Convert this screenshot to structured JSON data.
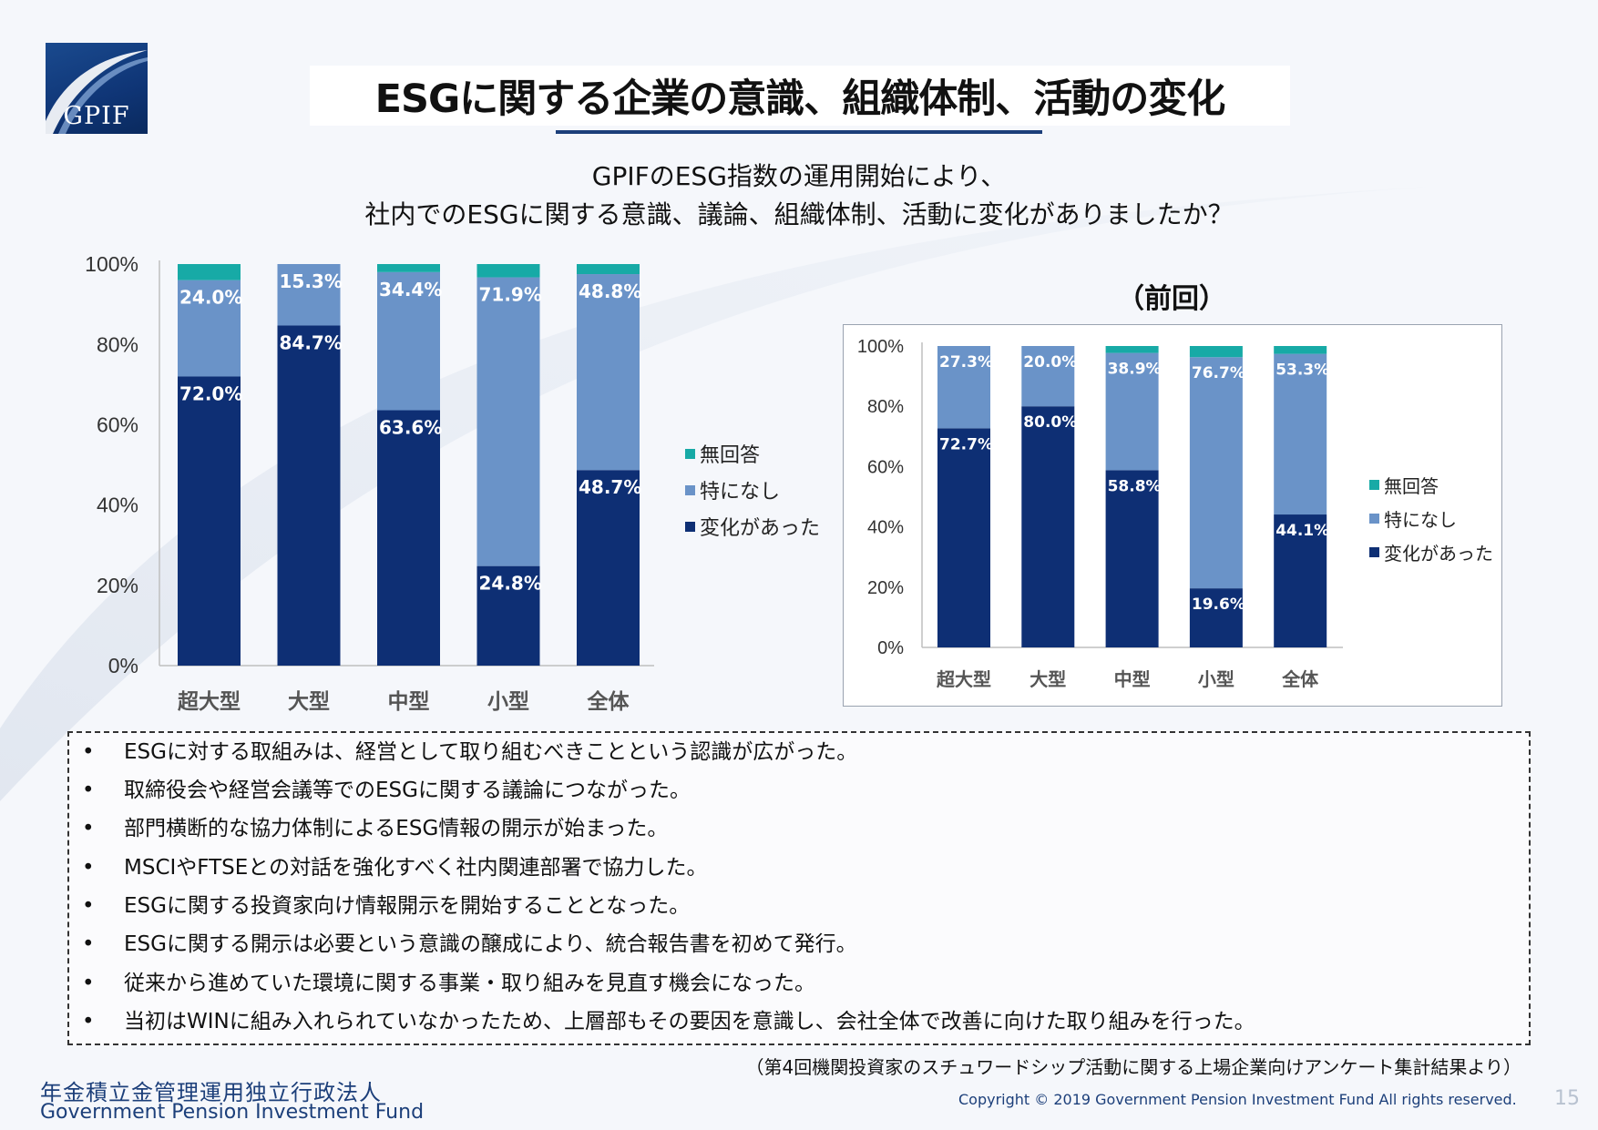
{
  "logo": {
    "text": "GPIF"
  },
  "title": "ESGに関する企業の意識、組織体制、活動の変化",
  "question": {
    "line1": "GPIFのESG指数の運用開始により、",
    "line2": "社内でのESGに関する意識、議論、組織体制、活動に変化がありましたか？"
  },
  "colors": {
    "changed": "#0e2f74",
    "none": "#6a93c8",
    "no_answer": "#17aaa6",
    "accent": "#1c3f7a"
  },
  "legend": [
    "無回答",
    "特になし",
    "変化があった"
  ],
  "chart_data": [
    {
      "id": "current",
      "type": "bar",
      "stacked": true,
      "title": "",
      "categories": [
        "超大型",
        "大型",
        "中型",
        "小型",
        "全体"
      ],
      "series": [
        {
          "name": "変化があった",
          "color": "#0e2f74",
          "values": [
            72.0,
            84.7,
            63.6,
            24.8,
            48.7
          ],
          "labels": [
            "72.0%",
            "84.7%",
            "63.6%",
            "24.8%",
            "48.7%"
          ]
        },
        {
          "name": "特になし",
          "color": "#6a93c8",
          "values": [
            24.0,
            15.3,
            34.4,
            71.9,
            48.8
          ],
          "labels": [
            "24.0%",
            "15.3%",
            "34.4%",
            "71.9%",
            "48.8%"
          ]
        },
        {
          "name": "無回答",
          "color": "#17aaa6",
          "values": [
            4.0,
            0.0,
            2.0,
            3.3,
            2.5
          ],
          "labels": [
            "",
            "",
            "",
            "",
            ""
          ]
        }
      ],
      "yticks": [
        "0%",
        "20%",
        "40%",
        "60%",
        "80%",
        "100%"
      ],
      "ylim": [
        0,
        100
      ],
      "legend_position": "right"
    },
    {
      "id": "previous",
      "type": "bar",
      "stacked": true,
      "title": "（前回）",
      "categories": [
        "超大型",
        "大型",
        "中型",
        "小型",
        "全体"
      ],
      "series": [
        {
          "name": "変化があった",
          "color": "#0e2f74",
          "values": [
            72.7,
            80.0,
            58.8,
            19.6,
            44.1
          ],
          "labels": [
            "72.7%",
            "80.0%",
            "58.8%",
            "19.6%",
            "44.1%"
          ]
        },
        {
          "name": "特になし",
          "color": "#6a93c8",
          "values": [
            27.3,
            20.0,
            38.9,
            76.7,
            53.3
          ],
          "labels": [
            "27.3%",
            "20.0%",
            "38.9%",
            "76.7%",
            "53.3%"
          ]
        },
        {
          "name": "無回答",
          "color": "#17aaa6",
          "values": [
            0.0,
            0.0,
            2.3,
            3.7,
            2.6
          ],
          "labels": [
            "",
            "",
            "",
            "",
            ""
          ]
        }
      ],
      "yticks": [
        "0%",
        "20%",
        "40%",
        "60%",
        "80%",
        "100%"
      ],
      "ylim": [
        0,
        100
      ],
      "legend_position": "right"
    }
  ],
  "comments": [
    "ESGに対する取組みは、経営として取り組むべきことという認識が広がった。",
    "取締役会や経営会議等でのESGに関する議論につながった。",
    "部門横断的な協力体制によるESG情報の開示が始まった。",
    "MSCIやFTSEとの対話を強化すべく社内関連部署で協力した。",
    "ESGに関する投資家向け情報開示を開始することとなった。",
    "ESGに関する開示は必要という意識の醸成により、統合報告書を初めて発行。",
    "従来から進めていた環境に関する事業・取り組みを見直す機会になった。",
    "当初はWINに組み入れられていなかったため、上層部もその要因を意識し、会社全体で改善に向けた取り組みを行った。"
  ],
  "bullet": "•",
  "source": "（第4回機関投資家のスチュワードシップ活動に関する上場企業向けアンケート集計結果より）",
  "org": {
    "ja": "年金積立金管理運用独立行政法人",
    "en": "Government Pension Investment Fund"
  },
  "copyright": "Copyright © 2019 Government Pension Investment Fund All rights reserved.",
  "page_number": "15"
}
